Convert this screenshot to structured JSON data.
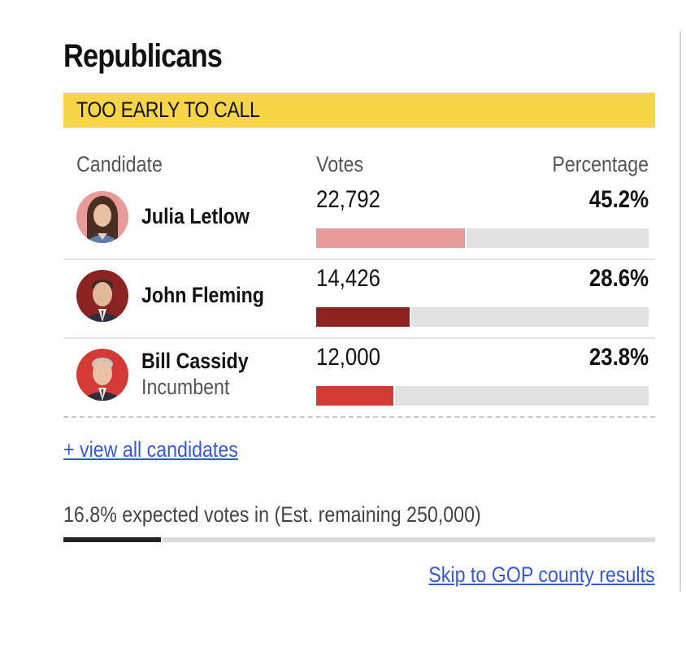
{
  "race": {
    "title": "Republicans",
    "status": "TOO EARLY TO CALL",
    "status_color": "#f8d548"
  },
  "columns": {
    "candidate": "Candidate",
    "votes": "Votes",
    "percentage": "Percentage"
  },
  "candidates": [
    {
      "name": "Julia Letlow",
      "subtitle": "",
      "votes": "22,792",
      "percent_label": "45.2%",
      "percent": 45.2,
      "bar_color": "#e89a98",
      "avatar_bg": "#e89a98"
    },
    {
      "name": "John Fleming",
      "subtitle": "",
      "votes": "14,426",
      "percent_label": "28.6%",
      "percent": 28.6,
      "bar_color": "#8b2322",
      "avatar_bg": "#8b2322"
    },
    {
      "name": "Bill Cassidy",
      "subtitle": "Incumbent",
      "votes": "12,000",
      "percent_label": "23.8%",
      "percent": 23.8,
      "bar_color": "#d33a35",
      "avatar_bg": "#d33a35"
    }
  ],
  "view_all_label": "+ view all candidates",
  "expected": {
    "text": "16.8% expected votes in (Est. remaining 250,000)",
    "percent": 16.8,
    "bar_color": "#222222"
  },
  "skip_link": "Skip to GOP county results",
  "link_color": "#3558d6"
}
